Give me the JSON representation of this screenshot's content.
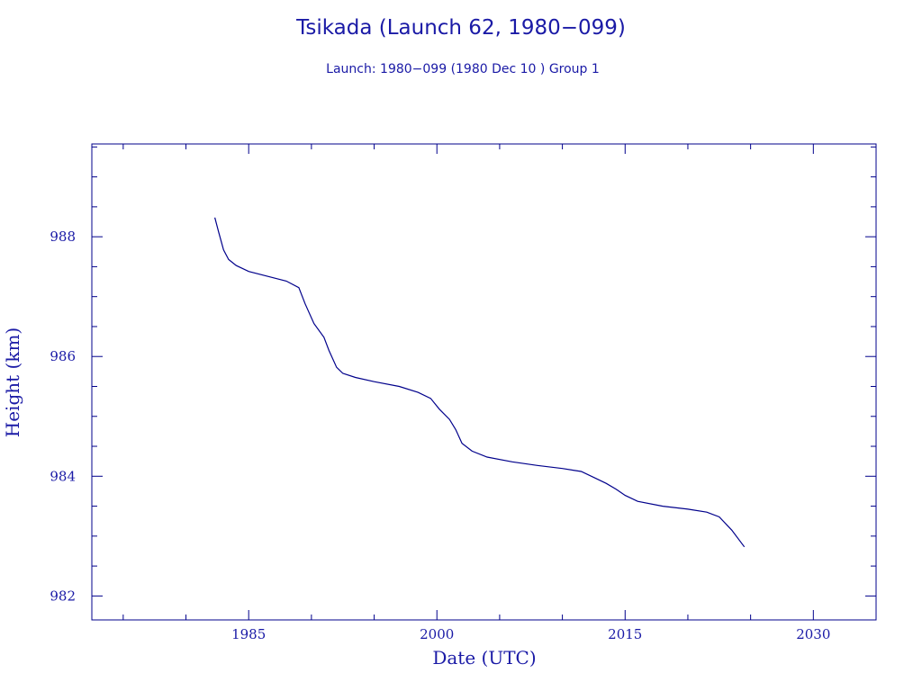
{
  "chart_data": {
    "type": "line",
    "title": "Tsikada (Launch 62, 1980−099)",
    "subtitle": "Launch: 1980−099  (1980 Dec 10 )  Group 1",
    "xlabel": "Date (UTC)",
    "ylabel": "Height (km)",
    "xlim": [
      1972.5,
      2035.0
    ],
    "ylim": [
      981.6,
      989.55
    ],
    "x_ticks": [
      "1985",
      "2000",
      "2015",
      "2030"
    ],
    "y_ticks": [
      "982",
      "984",
      "986",
      "988"
    ],
    "grid": false,
    "line_color": "#00008b",
    "series": [
      {
        "x": [
          1982.3,
          1982.6,
          1983.0,
          1983.4,
          1984.0,
          1985.0,
          1986.5,
          1988.0,
          1989.0,
          1989.5,
          1990.2,
          1991.0,
          1991.4,
          1992.0,
          1992.5,
          1993.5,
          1995.0,
          1997.0,
          1998.5,
          1999.5,
          2000.2,
          2001.0,
          2001.5,
          2002.0,
          2002.8,
          2004.0,
          2006.0,
          2008.0,
          2010.0,
          2011.5,
          2012.5,
          2013.5,
          2014.3,
          2015.0,
          2016.0,
          2018.0,
          2020.0,
          2021.5,
          2022.5,
          2023.5,
          2024.5
        ],
        "y": [
          988.32,
          988.08,
          987.78,
          987.62,
          987.52,
          987.42,
          987.34,
          987.26,
          987.15,
          986.88,
          986.55,
          986.32,
          986.1,
          985.82,
          985.72,
          985.65,
          985.58,
          985.5,
          985.4,
          985.3,
          985.12,
          984.95,
          984.78,
          984.55,
          984.42,
          984.32,
          984.24,
          984.18,
          984.13,
          984.08,
          983.98,
          983.88,
          983.78,
          983.68,
          983.58,
          983.5,
          983.45,
          983.4,
          983.32,
          983.1,
          982.82
        ]
      }
    ]
  }
}
